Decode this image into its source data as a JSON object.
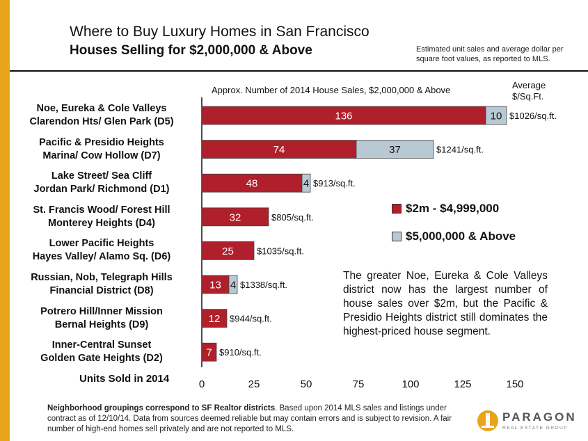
{
  "header": {
    "title": "Where to Buy Luxury Homes in San Francisco",
    "subtitle": "Houses Selling for $2,000,000 & Above",
    "note": "Estimated unit sales and average dollar per square foot values, as reported to MLS."
  },
  "chart_data": {
    "type": "bar",
    "orientation": "horizontal",
    "stacked": true,
    "title": "Approx. Number of 2014 House Sales, $2,000,000 & Above",
    "xlabel": "Units Sold in 2014",
    "avg_header": "Average $/Sq.Ft.",
    "xlim": [
      0,
      150
    ],
    "xticks": [
      0,
      25,
      50,
      75,
      100,
      125,
      150
    ],
    "grid": false,
    "legend_position": "right",
    "categories": [
      {
        "line1": "Noe, Eureka & Cole Valleys",
        "line2": "Clarendon Hts/ Glen Park (D5)"
      },
      {
        "line1": "Pacific & Presidio Heights",
        "line2": "Marina/ Cow Hollow (D7)"
      },
      {
        "line1": "Lake Street/ Sea Cliff",
        "line2": "Jordan Park/ Richmond (D1)"
      },
      {
        "line1": "St. Francis Wood/ Forest Hill",
        "line2": "Monterey Heights (D4)"
      },
      {
        "line1": "Lower Pacific Heights",
        "line2": "Hayes Valley/ Alamo Sq. (D6)"
      },
      {
        "line1": "Russian, Nob, Telegraph Hills",
        "line2": "Financial District (D8)"
      },
      {
        "line1": "Potrero Hill/Inner Mission",
        "line2": "Bernal Heights (D9)"
      },
      {
        "line1": "Inner-Central Sunset",
        "line2": "Golden Gate Heights (D2)"
      }
    ],
    "series": [
      {
        "name": "$2m - $4,999,000",
        "color": "#b0202c",
        "values": [
          136,
          74,
          48,
          32,
          25,
          13,
          12,
          7
        ],
        "labels": [
          "136",
          "74",
          "48",
          "32",
          "25",
          "13",
          "12",
          "7"
        ]
      },
      {
        "name": "$5,000,000 & Above",
        "color": "#b9c9d4",
        "values": [
          10,
          37,
          4,
          0,
          0,
          4,
          0,
          0
        ],
        "labels": [
          "10",
          "37",
          "4",
          "",
          "",
          "4",
          "",
          ""
        ]
      }
    ],
    "price_labels": [
      "$1026/sq.ft.",
      "$1241/sq.ft.",
      "$913/sq.ft.",
      "$805/sq.ft.",
      "$1035/sq.ft.",
      "$1338/sq.ft.",
      "$944/sq.ft.",
      "$910/sq.ft."
    ]
  },
  "annotation": "The greater Noe, Eureka & Cole Valleys district now has the largest number of house sales over $2m, but the Pacific & Presidio Heights district still dominates the highest-priced house segment.",
  "footer": {
    "bold": "Neighborhood groupings correspond to SF Realtor districts",
    "rest": ". Based upon 2014 MLS sales and listings under contract as of 12/10/14. Data from sources deemed reliable but may contain errors and is subject to revision. A fair number of high-end homes sell privately and are not reported to MLS."
  },
  "logo": {
    "name": "PARAGON",
    "tagline": "REAL ESTATE GROUP",
    "color": "#e8a51c"
  }
}
